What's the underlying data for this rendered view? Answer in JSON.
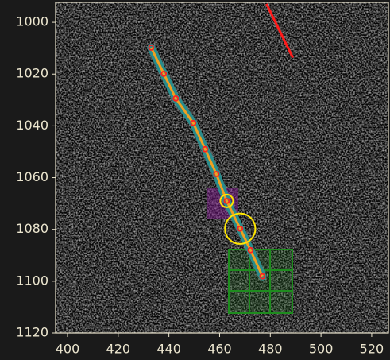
{
  "chart_data": {
    "type": "track",
    "x": [
      433.0,
      438.0,
      442.7,
      449.6,
      454.3,
      458.7,
      462.8,
      468.1,
      472.2,
      476.9
    ],
    "y": [
      1009.8,
      1019.9,
      1029.4,
      1038.9,
      1049.0,
      1058.6,
      1069.0,
      1079.7,
      1088.0,
      1098.1
    ],
    "band_color": "#2a8c8c",
    "line_color": "#f0a020",
    "marker_color": "#ff2020",
    "segment": {
      "x": [
        478.5,
        488.9
      ],
      "y": [
        992.9,
        1013.7
      ],
      "color": "#ff1a1a"
    },
    "circles": {
      "x": [
        462.8,
        468.1
      ],
      "y": [
        1069.0,
        1079.7
      ],
      "r": [
        2.5,
        6.0
      ],
      "color": "#ffe600"
    },
    "xlim": [
      395.3,
      526.6
    ],
    "ylim": [
      1120,
      992.3
    ],
    "xticks": [
      400,
      420,
      440,
      460,
      480,
      500,
      520
    ],
    "yticks": [
      1000,
      1020,
      1040,
      1060,
      1080,
      1100,
      1120
    ]
  }
}
